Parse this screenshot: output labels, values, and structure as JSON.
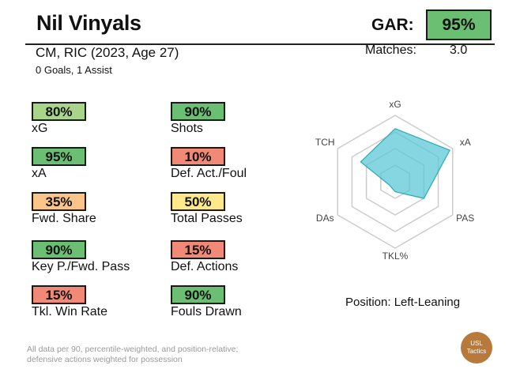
{
  "header": {
    "player_name": "Nil Vinyals",
    "gar_label": "GAR:",
    "gar_value": "95%",
    "subtitle": "CM, RIC (2023, Age 27)",
    "matches_label": "Matches:",
    "matches_value": "3.0",
    "goals_line": "0 Goals,  1 Assist"
  },
  "colors": {
    "green": "#6bbf72",
    "light_green": "#a9d58a",
    "yellow": "#fde98a",
    "orange": "#fbc488",
    "red": "#f08a76",
    "radar_fill": "#56c6d4",
    "radar_stroke": "#2aa8b8",
    "grid": "#cccccc"
  },
  "stats": [
    {
      "value": "80%",
      "label": "xG",
      "color": "#a9d58a"
    },
    {
      "value": "90%",
      "label": "Shots",
      "color": "#6bbf72"
    },
    {
      "value": "95%",
      "label": "xA",
      "color": "#6bbf72"
    },
    {
      "value": "10%",
      "label": "Def. Act./Foul",
      "color": "#f08a76"
    },
    {
      "value": "35%",
      "label": "Fwd. Share",
      "color": "#fbc488"
    },
    {
      "value": "50%",
      "label": "Total Passes",
      "color": "#fde98a"
    },
    {
      "value": "90%",
      "label": "Key P./Fwd. Pass",
      "color": "#6bbf72"
    },
    {
      "value": "15%",
      "label": "Def. Actions",
      "color": "#f08a76"
    },
    {
      "value": "15%",
      "label": "Tkl. Win Rate",
      "color": "#f08a76"
    },
    {
      "value": "90%",
      "label": "Fouls Drawn",
      "color": "#6bbf72"
    }
  ],
  "chart_data": {
    "type": "radar",
    "axes": [
      "xG",
      "xA",
      "PAS",
      "TKL%",
      "DAs",
      "TCH"
    ],
    "values": [
      0.8,
      0.95,
      0.5,
      0.15,
      0.1,
      0.6
    ],
    "range": [
      0,
      1
    ],
    "grid_levels": 4
  },
  "position_note": "Position: Left-Leaning",
  "footnote": {
    "line1": "All data per 90, percentile-weighted, and position-relative;",
    "line2": "defensive actions weighted for possession"
  },
  "logo": {
    "line1": "USL",
    "line2": "Tactics"
  }
}
